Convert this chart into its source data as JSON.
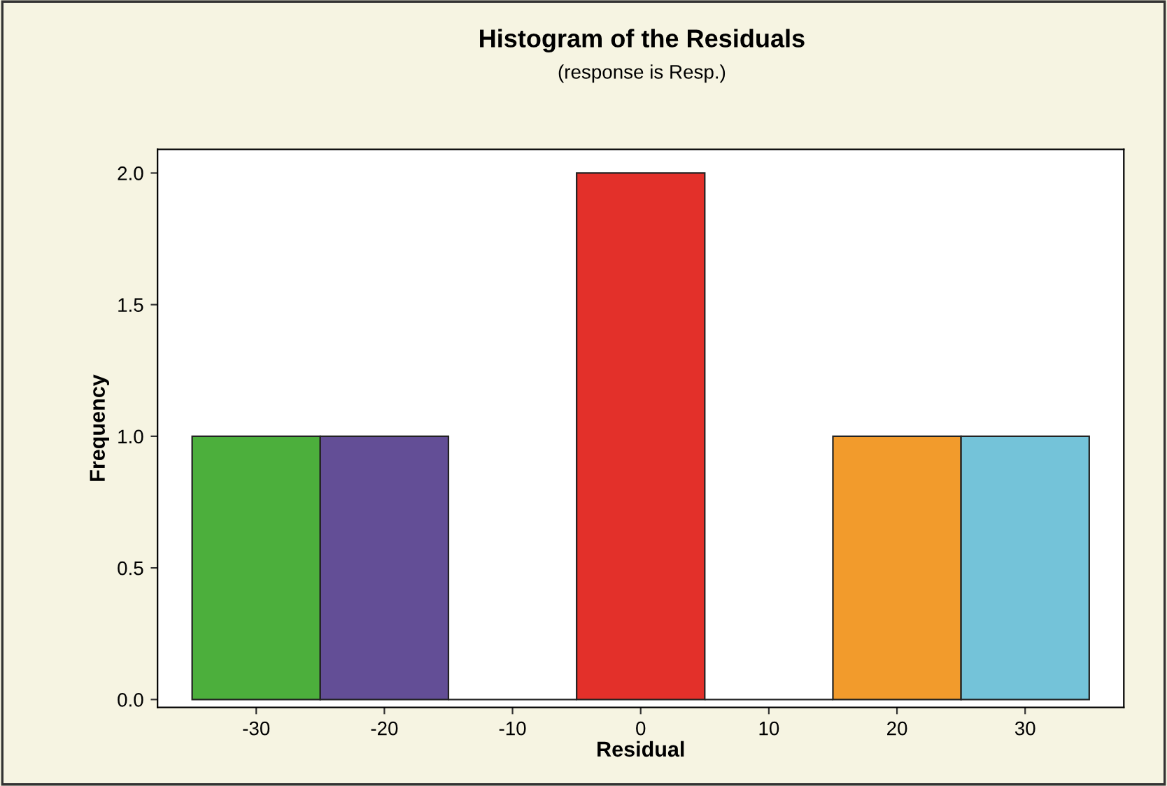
{
  "chart_data": {
    "type": "histogram",
    "title": "Histogram of the Residuals",
    "subtitle": "(response is Resp.)",
    "xlabel": "Residual",
    "ylabel": "Frequency",
    "bins": [
      -35,
      -25,
      -15,
      -5,
      5,
      15,
      25,
      35
    ],
    "values": [
      1,
      1,
      0,
      2,
      0,
      1,
      1
    ],
    "colors": [
      "#4caf3c",
      "#634e96",
      null,
      "#e3302a",
      null,
      "#f29b2c",
      "#74c3d9"
    ],
    "xlim": [
      -37.7,
      37.7
    ],
    "xticks": [
      -30,
      -20,
      -10,
      0,
      10,
      20,
      30
    ],
    "ylim": [
      -0.03,
      2.09
    ],
    "yticks": [
      {
        "value": 0,
        "label": "0.0"
      },
      {
        "value": 0.5,
        "label": "0.5"
      },
      {
        "value": 1,
        "label": "1.0"
      },
      {
        "value": 1.5,
        "label": "1.5"
      },
      {
        "value": 2,
        "label": "2.0"
      }
    ],
    "grid": false,
    "legend": false
  }
}
